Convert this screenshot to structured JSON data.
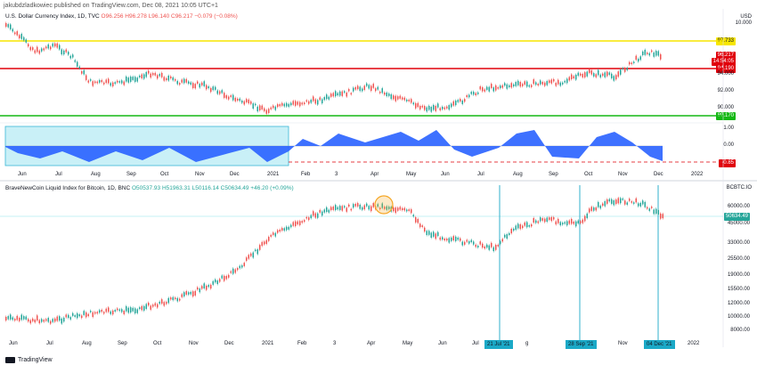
{
  "publisher": "jakubdzladkowiec published on TradingView.com, Dec 08, 2021 10:05 UTC+1",
  "top_chart": {
    "symbol": "U.S. Dollar Currency Index, 1D, TVC",
    "o": "O96.256",
    "h": "H96.278",
    "l": "L96.140",
    "c": "C96.217",
    "chg": "−0.079 (−0.08%)",
    "currency": "USD",
    "unit": "10.000",
    "levels": [
      {
        "value": "97.733",
        "color": "#f7e600",
        "text_color": "#131722"
      },
      {
        "value": "94.190",
        "color": "#e0000a",
        "text_color": "#ffffff"
      },
      {
        "value": "89.170",
        "color": "#14b814",
        "text_color": "#ffffff"
      }
    ],
    "price_tag": "96.217",
    "price_tag_time": "14:54:05",
    "ticks": [
      "94.000",
      "92.000",
      "90.000"
    ],
    "osc_ticks": [
      "1.00",
      "0.00"
    ],
    "osc_tag": "−0.85"
  },
  "top_axis_labels": [
    "Jun",
    "Jul",
    "Aug",
    "Sep",
    "Oct",
    "Nov",
    "Dec",
    "2021",
    "Feb",
    "3",
    "Apr",
    "May",
    "Jun",
    "Jul",
    "Aug",
    "Sep",
    "Oct",
    "Nov",
    "Dec",
    "2022"
  ],
  "bottom_chart": {
    "symbol": "BraveNewCoin Liquid Index for Bitcoin, 1D, BNC",
    "o": "O50537.93",
    "h": "H51963.31",
    "l": "L50116.14",
    "c": "C50634.49",
    "chg": "+46.20 (+0.09%)",
    "currency": "BCBTC.IO",
    "price_tag": "50634.49",
    "ticks": [
      "60000.00",
      "45000.00",
      "33000.00",
      "25500.00",
      "19000.00",
      "15500.00",
      "12000.00",
      "10000.00",
      "8000.00"
    ],
    "date_tags": [
      "21 Jul '21",
      "28 Sep '21",
      "04 Dec '21"
    ]
  },
  "bottom_axis_labels": [
    "Jun",
    "Jul",
    "Aug",
    "Sep",
    "Oct",
    "Nov",
    "Dec",
    "2021",
    "Feb",
    "3",
    "Apr",
    "May",
    "Jun",
    "Jul",
    "g",
    "Oct",
    "Nov",
    "2022"
  ],
  "footer": {
    "brand": "TradingView"
  },
  "colors": {
    "candle_up": "#26a69a",
    "candle_down": "#ef5350",
    "osc_fill": "#2962ff",
    "highlight": "#c9f0f7",
    "vline": "#1ba9c7",
    "circle": "#f5a623"
  }
}
